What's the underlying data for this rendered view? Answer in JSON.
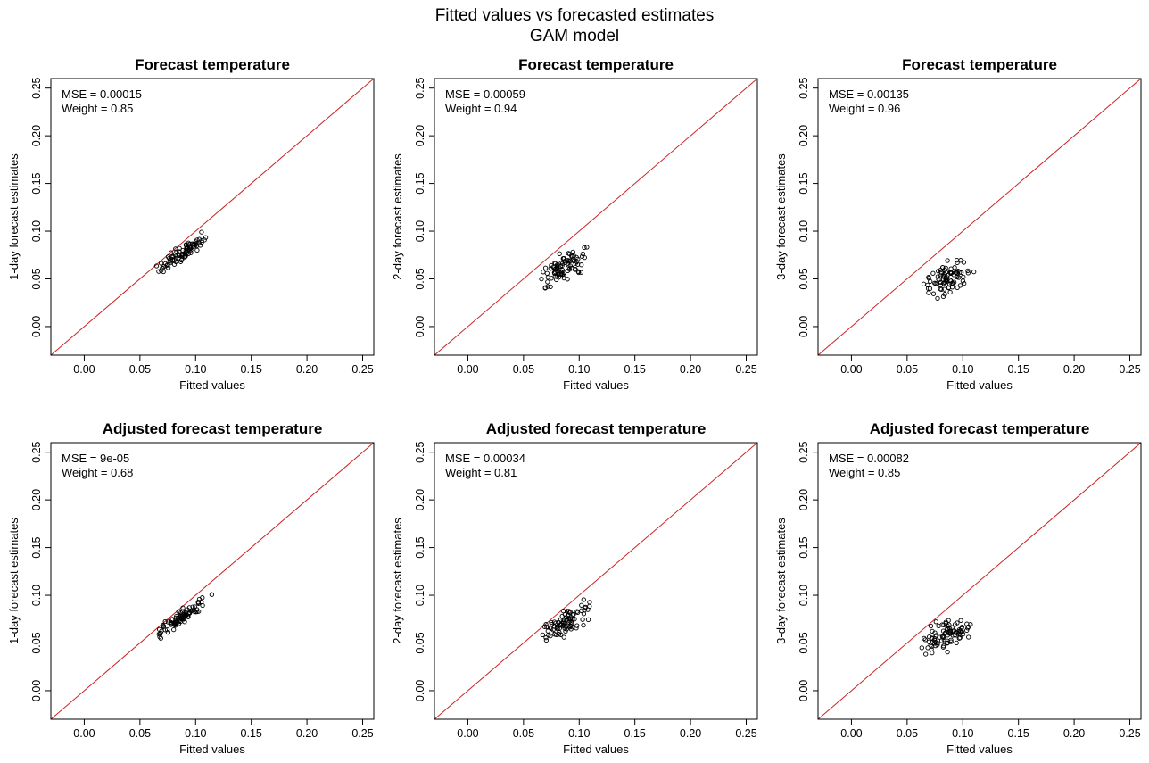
{
  "figure": {
    "title_line1": "Fitted values vs forecasted estimates",
    "title_line2": "GAM model"
  },
  "colors": {
    "reference_line": "#cc2222",
    "points": "#000000",
    "frame": "#000000"
  },
  "chart_data": [
    {
      "type": "scatter",
      "title": "Forecast temperature",
      "xlabel": "Fitted values",
      "ylabel": "1-day forecast estimates",
      "xlim": [
        -0.03,
        0.26
      ],
      "ylim": [
        -0.03,
        0.26
      ],
      "xticks": [
        "0.00",
        "0.05",
        "0.10",
        "0.15",
        "0.20",
        "0.25"
      ],
      "yticks": [
        "0.00",
        "0.05",
        "0.10",
        "0.15",
        "0.20",
        "0.25"
      ],
      "annotations": [
        "MSE = 0.00015",
        "Weight = 0.85"
      ],
      "reference_line": "y = x",
      "grid": false,
      "series": [
        {
          "center_x": 0.085,
          "slope": 0.78,
          "intercept": 0.008,
          "noise": 0.006,
          "x_range": [
            0.062,
            0.12
          ],
          "n": 90,
          "seed": 11
        }
      ]
    },
    {
      "type": "scatter",
      "title": "Forecast temperature",
      "xlabel": "Fitted values",
      "ylabel": "2-day forecast estimates",
      "xlim": [
        -0.03,
        0.26
      ],
      "ylim": [
        -0.03,
        0.26
      ],
      "xticks": [
        "0.00",
        "0.05",
        "0.10",
        "0.15",
        "0.20",
        "0.25"
      ],
      "yticks": [
        "0.00",
        "0.05",
        "0.10",
        "0.15",
        "0.20",
        "0.25"
      ],
      "annotations": [
        "MSE = 0.00059",
        "Weight = 0.94"
      ],
      "reference_line": "y = x",
      "grid": false,
      "series": [
        {
          "center_x": 0.085,
          "slope": 0.55,
          "intercept": 0.015,
          "noise": 0.011,
          "x_range": [
            0.062,
            0.12
          ],
          "n": 90,
          "seed": 23
        }
      ]
    },
    {
      "type": "scatter",
      "title": "Forecast temperature",
      "xlabel": "Fitted values",
      "ylabel": "3-day forecast estimates",
      "xlim": [
        -0.03,
        0.26
      ],
      "ylim": [
        -0.03,
        0.26
      ],
      "xticks": [
        "0.00",
        "0.05",
        "0.10",
        "0.15",
        "0.20",
        "0.25"
      ],
      "yticks": [
        "0.00",
        "0.05",
        "0.10",
        "0.15",
        "0.20",
        "0.25"
      ],
      "annotations": [
        "MSE = 0.00135",
        "Weight = 0.96"
      ],
      "reference_line": "y = x",
      "grid": false,
      "series": [
        {
          "center_x": 0.085,
          "slope": 0.3,
          "intercept": 0.024,
          "noise": 0.012,
          "x_range": [
            0.062,
            0.12
          ],
          "n": 90,
          "seed": 37
        }
      ]
    },
    {
      "type": "scatter",
      "title": "Adjusted forecast temperature",
      "xlabel": "Fitted values",
      "ylabel": "1-day forecast estimates",
      "xlim": [
        -0.03,
        0.26
      ],
      "ylim": [
        -0.03,
        0.26
      ],
      "xticks": [
        "0.00",
        "0.05",
        "0.10",
        "0.15",
        "0.20",
        "0.25"
      ],
      "yticks": [
        "0.00",
        "0.05",
        "0.10",
        "0.15",
        "0.20",
        "0.25"
      ],
      "annotations": [
        "MSE = 9e-05",
        "Weight = 0.68"
      ],
      "reference_line": "y = x",
      "grid": false,
      "series": [
        {
          "center_x": 0.085,
          "slope": 0.8,
          "intercept": 0.007,
          "noise": 0.006,
          "x_range": [
            0.062,
            0.12
          ],
          "n": 90,
          "seed": 41
        }
      ]
    },
    {
      "type": "scatter",
      "title": "Adjusted forecast temperature",
      "xlabel": "Fitted values",
      "ylabel": "2-day forecast estimates",
      "xlim": [
        -0.03,
        0.26
      ],
      "ylim": [
        -0.03,
        0.26
      ],
      "xticks": [
        "0.00",
        "0.05",
        "0.10",
        "0.15",
        "0.20",
        "0.25"
      ],
      "yticks": [
        "0.00",
        "0.05",
        "0.10",
        "0.15",
        "0.20",
        "0.25"
      ],
      "annotations": [
        "MSE = 0.00034",
        "Weight = 0.81"
      ],
      "reference_line": "y = x",
      "grid": false,
      "series": [
        {
          "center_x": 0.085,
          "slope": 0.58,
          "intercept": 0.022,
          "noise": 0.01,
          "x_range": [
            0.062,
            0.12
          ],
          "n": 90,
          "seed": 53
        }
      ]
    },
    {
      "type": "scatter",
      "title": "Adjusted forecast temperature",
      "xlabel": "Fitted values",
      "ylabel": "3-day forecast estimates",
      "xlim": [
        -0.03,
        0.26
      ],
      "ylim": [
        -0.03,
        0.26
      ],
      "xticks": [
        "0.00",
        "0.05",
        "0.10",
        "0.15",
        "0.20",
        "0.25"
      ],
      "yticks": [
        "0.00",
        "0.05",
        "0.10",
        "0.15",
        "0.20",
        "0.25"
      ],
      "annotations": [
        "MSE = 0.00082",
        "Weight = 0.85"
      ],
      "reference_line": "y = x",
      "grid": false,
      "series": [
        {
          "center_x": 0.085,
          "slope": 0.38,
          "intercept": 0.026,
          "noise": 0.011,
          "x_range": [
            0.062,
            0.12
          ],
          "n": 90,
          "seed": 67
        }
      ]
    }
  ]
}
